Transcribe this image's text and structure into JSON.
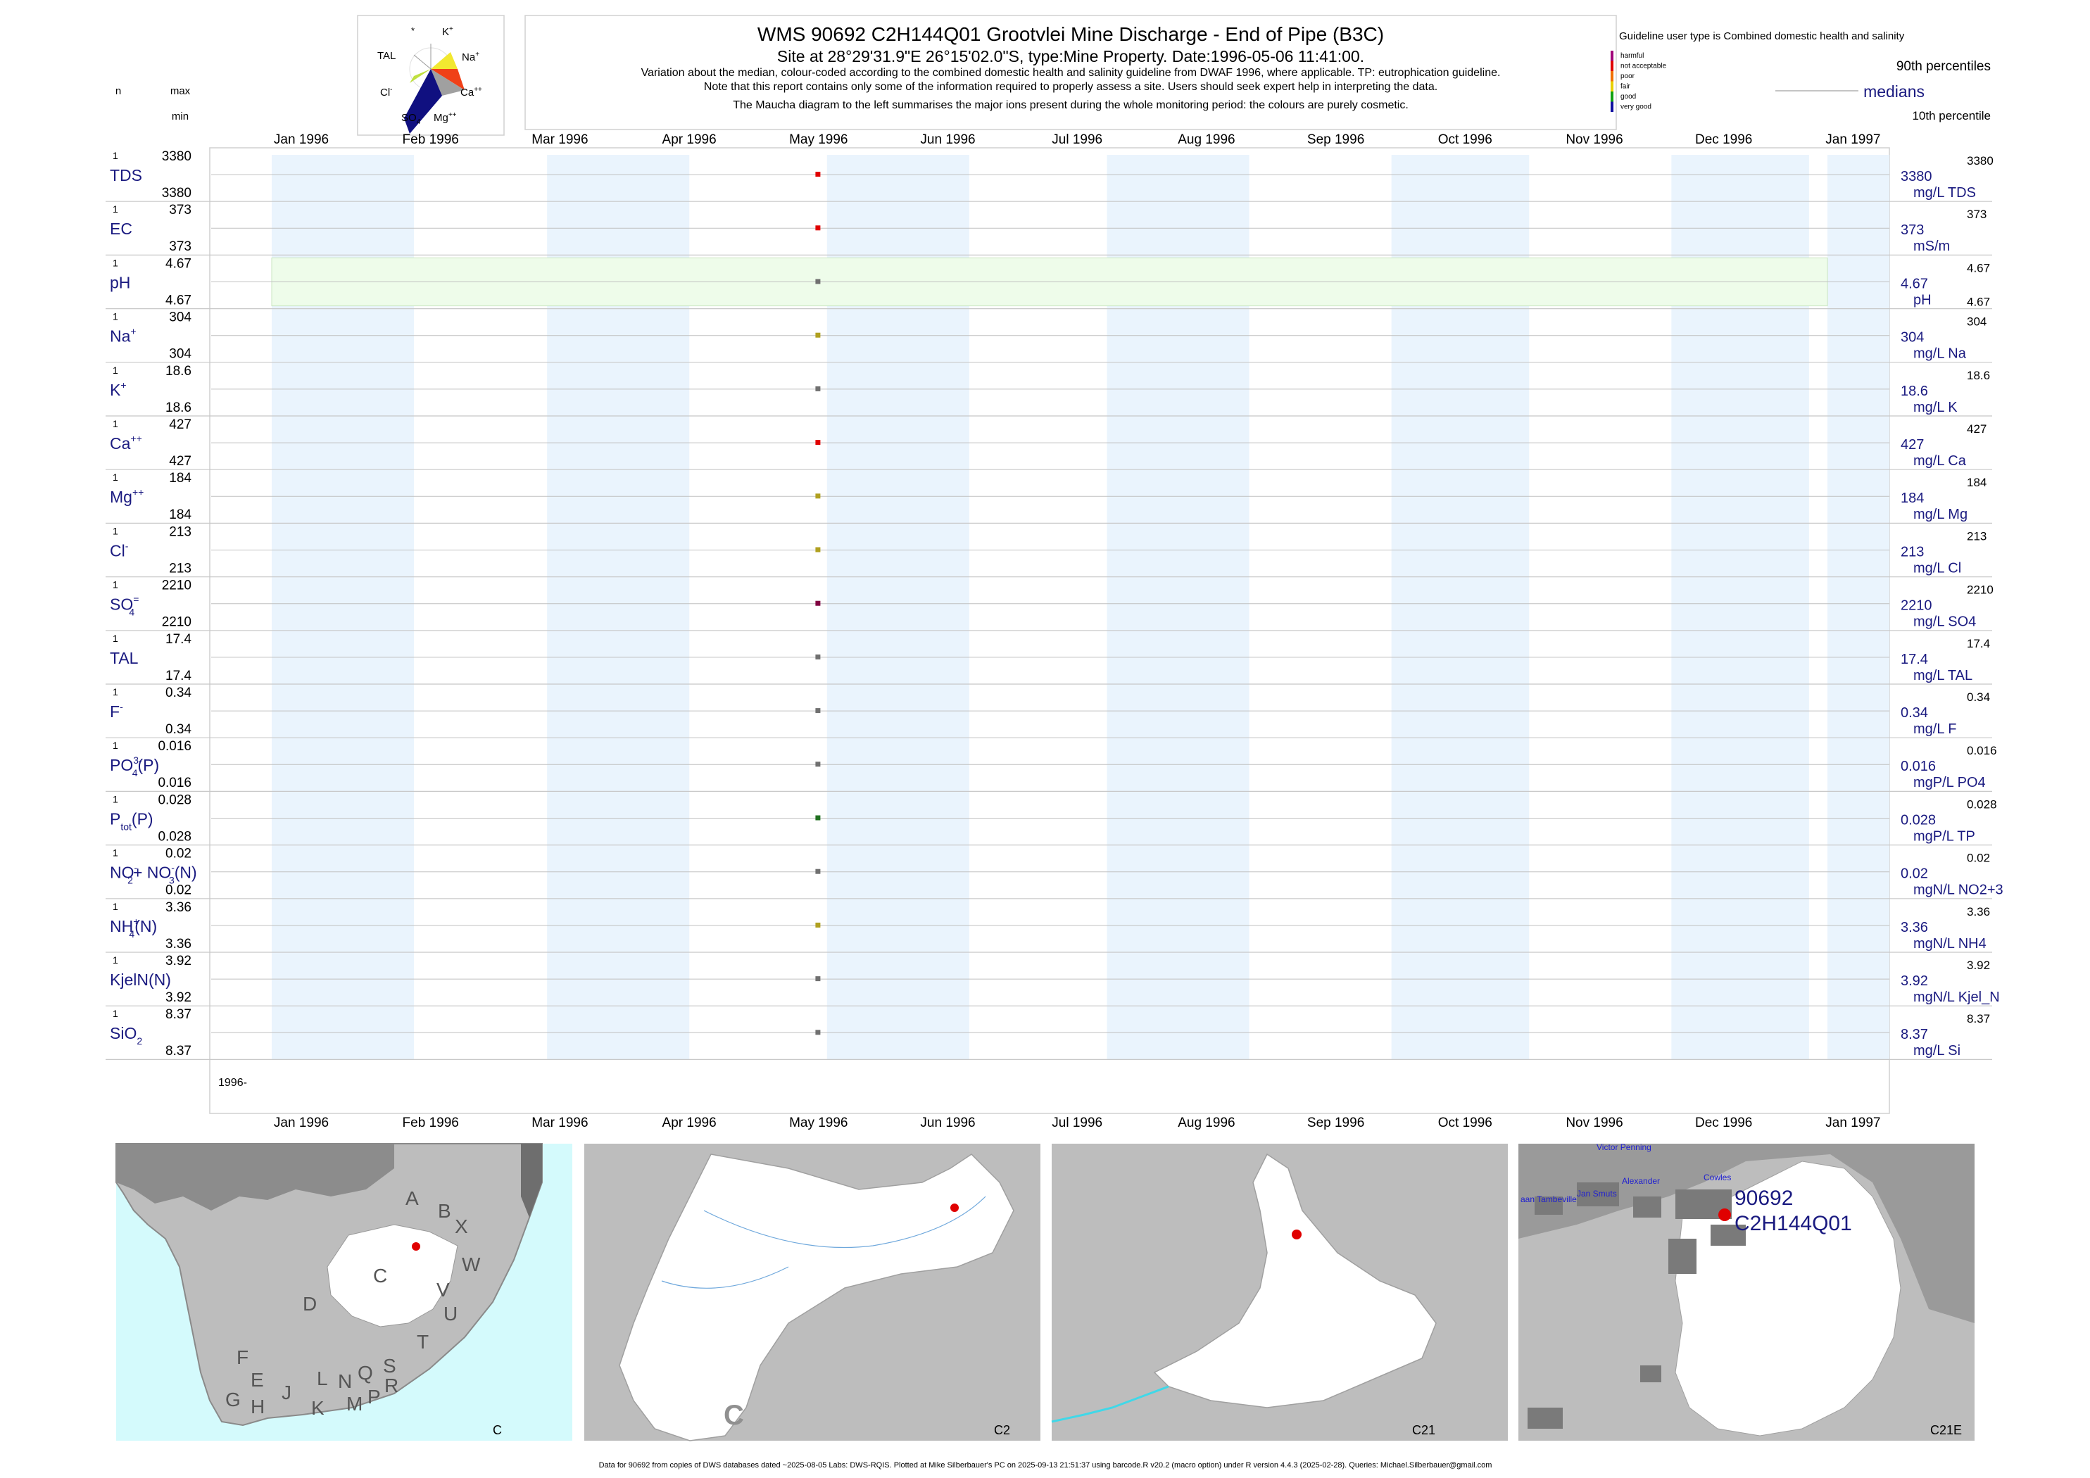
{
  "header": {
    "title": "WMS 90692 C2H144Q01 Grootvlei Mine Discharge - End of Pipe (B3C)",
    "subtitle": "Site at 28°29'31.9\"E 26°15'02.0\"S, type:Mine Property. Date:1996-05-06 11:41:00.",
    "note1": "Variation about the median,  colour-coded according to the combined domestic health and salinity guideline from DWAF 1996, where applicable. TP: eutrophication guideline.",
    "note2": "Note that this report contains only some of the information required to properly assess a site. Users should seek expert help in interpreting the data.",
    "note3": "The Maucha diagram to the left summarises the major ions present during the whole monitoring period: the colours are purely cosmetic."
  },
  "maucha": {
    "labels": {
      "star": "*",
      "k": "K",
      "k_sup": "+",
      "tal": "TAL",
      "na": "Na",
      "na_sup": "+",
      "cl": "Cl",
      "cl_sup": "-",
      "ca": "Ca",
      "ca_sup": "++",
      "so4": "SO",
      "so4_sub": "4",
      "mg": "Mg",
      "mg_sup": "++"
    },
    "colors": {
      "na": "#f2e830",
      "ca": "#f04018",
      "mg": "#a0a0a0",
      "so4": "#101080",
      "cl": "#c0e040",
      "k": "#ffffff"
    }
  },
  "column_heads": {
    "n": "n",
    "max": "max",
    "min": "min"
  },
  "legend": {
    "title": "Guideline user type is Combined domestic health and salinity",
    "classes": [
      {
        "label": "harmful",
        "color": "#a0007a"
      },
      {
        "label": "not acceptable",
        "color": "#e00000"
      },
      {
        "label": "poor",
        "color": "#f07000"
      },
      {
        "label": "fair",
        "color": "#e8d000"
      },
      {
        "label": "good",
        "color": "#10a010"
      },
      {
        "label": "very good",
        "color": "#1010a0"
      }
    ],
    "p90": "90th percentiles",
    "medians": "medians",
    "p10": "10th percentile"
  },
  "months": [
    "Jan 1996",
    "Feb 1996",
    "Mar 1996",
    "Apr 1996",
    "May 1996",
    "Jun 1996",
    "Jul 1996",
    "Aug 1996",
    "Sep 1996",
    "Oct 1996",
    "Nov 1996",
    "Dec 1996",
    "Jan 1997"
  ],
  "year_label": "1996-",
  "chart_data": {
    "type": "scatter",
    "x_axis": {
      "range": [
        "1996-01-01",
        "1997-01-01"
      ]
    },
    "sample_date": "1996-05-06",
    "series": [
      {
        "name": "TDS",
        "sup": "",
        "sub": "",
        "suffix": "",
        "n": "1",
        "max": "3380",
        "min": "3380",
        "value": "3380",
        "unit": "mg/L TDS",
        "p90": "3380",
        "p10": "",
        "color": "#e00000",
        "band": ""
      },
      {
        "name": "EC",
        "sup": "",
        "sub": "",
        "suffix": "",
        "n": "1",
        "max": "373",
        "min": "373",
        "value": "373",
        "unit": "mS/m",
        "p90": "373",
        "p10": "",
        "color": "#e00000",
        "band": ""
      },
      {
        "name": "pH",
        "sup": "",
        "sub": "",
        "suffix": "",
        "n": "1",
        "max": "4.67",
        "min": "4.67",
        "value": "4.67",
        "unit": "pH",
        "p90": "4.67",
        "p10": "4.67",
        "color": "#707070",
        "band": "#eefcea"
      },
      {
        "name": "Na",
        "sup": "+",
        "sub": "",
        "suffix": "",
        "n": "1",
        "max": "304",
        "min": "304",
        "value": "304",
        "unit": "mg/L Na",
        "p90": "304",
        "p10": "",
        "color": "#b0a020",
        "band": ""
      },
      {
        "name": "K",
        "sup": "+",
        "sub": "",
        "suffix": "",
        "n": "1",
        "max": "18.6",
        "min": "18.6",
        "value": "18.6",
        "unit": "mg/L K",
        "p90": "18.6",
        "p10": "",
        "color": "#707070",
        "band": ""
      },
      {
        "name": "Ca",
        "sup": "++",
        "sub": "",
        "suffix": "",
        "n": "1",
        "max": "427",
        "min": "427",
        "value": "427",
        "unit": "mg/L Ca",
        "p90": "427",
        "p10": "",
        "color": "#e00000",
        "band": ""
      },
      {
        "name": "Mg",
        "sup": "++",
        "sub": "",
        "suffix": "",
        "n": "1",
        "max": "184",
        "min": "184",
        "value": "184",
        "unit": "mg/L Mg",
        "p90": "184",
        "p10": "",
        "color": "#b0a020",
        "band": ""
      },
      {
        "name": "Cl",
        "sup": "-",
        "sub": "",
        "suffix": "",
        "n": "1",
        "max": "213",
        "min": "213",
        "value": "213",
        "unit": "mg/L Cl",
        "p90": "213",
        "p10": "",
        "color": "#b0a020",
        "band": ""
      },
      {
        "name": "SO",
        "sup": "=",
        "sub": "4",
        "suffix": "",
        "n": "1",
        "max": "2210",
        "min": "2210",
        "value": "2210",
        "unit": "mg/L SO4",
        "p90": "2210",
        "p10": "",
        "color": "#800040",
        "band": ""
      },
      {
        "name": "TAL",
        "sup": "",
        "sub": "",
        "suffix": "",
        "n": "1",
        "max": "17.4",
        "min": "17.4",
        "value": "17.4",
        "unit": "mg/L TAL",
        "p90": "17.4",
        "p10": "",
        "color": "#707070",
        "band": ""
      },
      {
        "name": "F",
        "sup": "-",
        "sub": "",
        "suffix": "",
        "n": "1",
        "max": "0.34",
        "min": "0.34",
        "value": "0.34",
        "unit": "mg/L F",
        "p90": "0.34",
        "p10": "",
        "color": "#707070",
        "band": ""
      },
      {
        "name": "PO",
        "sup": "3-",
        "sub": "4",
        "suffix": "(P)",
        "n": "1",
        "max": "0.016",
        "min": "0.016",
        "value": "0.016",
        "unit": "mgP/L PO4",
        "p90": "0.016",
        "p10": "",
        "color": "#707070",
        "band": ""
      },
      {
        "name": "P",
        "sup": "",
        "sub": "tot",
        "suffix": "(P)",
        "n": "1",
        "max": "0.028",
        "min": "0.028",
        "value": "0.028",
        "unit": "mgP/L TP",
        "p90": "0.028",
        "p10": "",
        "color": "#207020",
        "band": ""
      },
      {
        "name": "NO",
        "sup": "-",
        "sub": "2",
        "suffix": "+ NO",
        "sup2": "-",
        "sub2": "3",
        "suffix2": "(N)",
        "n": "1",
        "max": "0.02",
        "min": "0.02",
        "value": "0.02",
        "unit": "mgN/L NO2+3",
        "p90": "0.02",
        "p10": "",
        "color": "#707070",
        "band": ""
      },
      {
        "name": "NH",
        "sup": "+",
        "sub": "4",
        "suffix": "(N)",
        "n": "1",
        "max": "3.36",
        "min": "3.36",
        "value": "3.36",
        "unit": "mgN/L NH4",
        "p90": "3.36",
        "p10": "",
        "color": "#b0a020",
        "band": ""
      },
      {
        "name": "KjelN(N)",
        "sup": "",
        "sub": "",
        "suffix": "",
        "n": "1",
        "max": "3.92",
        "min": "3.92",
        "value": "3.92",
        "unit": "mgN/L Kjel_N",
        "p90": "3.92",
        "p10": "",
        "color": "#707070",
        "band": ""
      },
      {
        "name": "SiO",
        "sup": "",
        "sub": "2",
        "suffix": "",
        "n": "1",
        "max": "8.37",
        "min": "8.37",
        "value": "8.37",
        "unit": "mg/L Si",
        "p90": "8.37",
        "p10": "",
        "color": "#707070",
        "band": ""
      }
    ]
  },
  "maps": {
    "sa_letters": [
      "A",
      "B",
      "X",
      "W",
      "C",
      "D",
      "V",
      "U",
      "T",
      "F",
      "E",
      "G",
      "H",
      "J",
      "K",
      "L",
      "N",
      "Q",
      "M",
      "P",
      "R",
      "S"
    ],
    "map1_label": "C",
    "map2_label": "C2",
    "map2_big": "C",
    "map3_label": "C21",
    "map4_label": "C21E",
    "site_id": "90692",
    "site_code": "C2H144Q01",
    "towns": [
      "Victor Penning",
      "Alexander",
      "Cowles",
      "Jan Smuts",
      "aan Tambeville"
    ]
  },
  "footer": "Data for 90692 from copies of DWS databases dated ~2025-08-05 Labs: DWS-RQIS. Plotted at Mike Silberbauer's PC on 2025-09-13 21:51:37 using barcode.R v20.2 (macro option) under R version 4.4.3 (2025-02-28). Queries: Michael.Silberbauer@gmail.com"
}
